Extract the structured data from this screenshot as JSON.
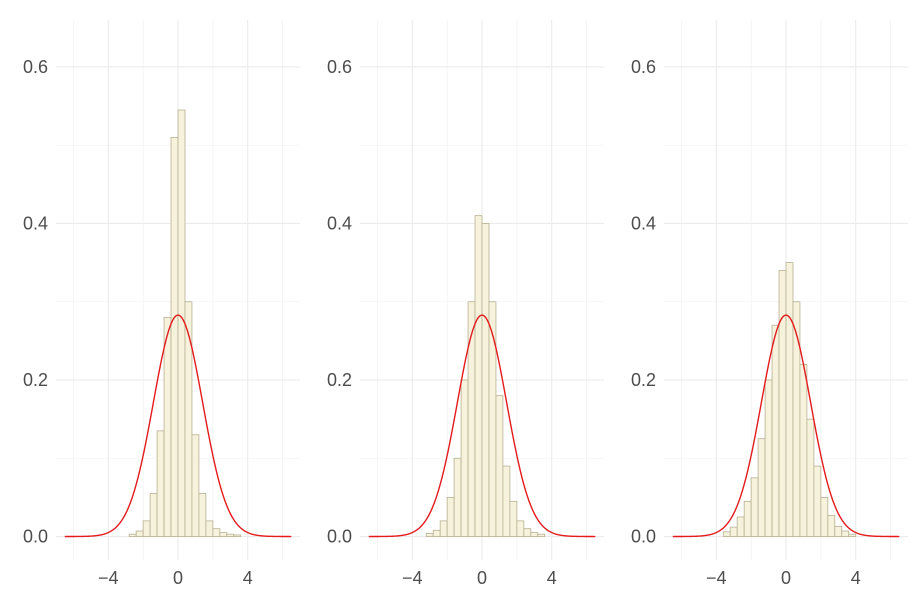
{
  "chart_data": [
    {
      "type": "bar",
      "title": "",
      "xlabel": "",
      "ylabel": "",
      "xlim": [
        -7,
        7
      ],
      "ylim": [
        -0.03,
        0.66
      ],
      "x_ticks": [
        -4,
        0,
        4
      ],
      "x_tick_labels": [
        "−4",
        "0",
        "4"
      ],
      "y_ticks": [
        0.0,
        0.2,
        0.4,
        0.6
      ],
      "y_tick_labels": [
        "0.0",
        "0.2",
        "0.4",
        "0.6"
      ],
      "grid": true,
      "bin_width": 0.4,
      "bins_start": [
        -2.8,
        -2.4,
        -2.0,
        -1.6,
        -1.2,
        -0.8,
        -0.4,
        0.0,
        0.4,
        0.8,
        1.2,
        1.6,
        2.0,
        2.4,
        2.8,
        3.2
      ],
      "density": [
        0.003,
        0.007,
        0.02,
        0.055,
        0.135,
        0.28,
        0.51,
        0.545,
        0.3,
        0.13,
        0.055,
        0.02,
        0.01,
        0.005,
        0.003,
        0.002
      ],
      "overlay": {
        "type": "line",
        "curve": "normal_density",
        "mean": 0,
        "sd": 1.41,
        "color": "#e41a1c"
      },
      "bar_fill": "#f6f2dc",
      "bar_stroke": "#b7b193"
    },
    {
      "type": "bar",
      "title": "",
      "xlabel": "",
      "ylabel": "",
      "xlim": [
        -7,
        7
      ],
      "ylim": [
        -0.03,
        0.66
      ],
      "x_ticks": [
        -4,
        0,
        4
      ],
      "x_tick_labels": [
        "−4",
        "0",
        "4"
      ],
      "y_ticks": [
        0.0,
        0.2,
        0.4,
        0.6
      ],
      "y_tick_labels": [
        "0.0",
        "0.2",
        "0.4",
        "0.6"
      ],
      "grid": true,
      "bin_width": 0.4,
      "bins_start": [
        -3.2,
        -2.8,
        -2.4,
        -2.0,
        -1.6,
        -1.2,
        -0.8,
        -0.4,
        0.0,
        0.4,
        0.8,
        1.2,
        1.6,
        2.0,
        2.4,
        2.8,
        3.2
      ],
      "density": [
        0.004,
        0.008,
        0.02,
        0.05,
        0.1,
        0.2,
        0.3,
        0.41,
        0.4,
        0.3,
        0.18,
        0.09,
        0.045,
        0.02,
        0.01,
        0.005,
        0.003
      ],
      "overlay": {
        "type": "line",
        "curve": "normal_density",
        "mean": 0,
        "sd": 1.41,
        "color": "#e41a1c"
      },
      "bar_fill": "#f6f2dc",
      "bar_stroke": "#b7b193"
    },
    {
      "type": "bar",
      "title": "",
      "xlabel": "",
      "ylabel": "",
      "xlim": [
        -7,
        7
      ],
      "ylim": [
        -0.03,
        0.66
      ],
      "x_ticks": [
        -4,
        0,
        4
      ],
      "x_tick_labels": [
        "−4",
        "0",
        "4"
      ],
      "y_ticks": [
        0.0,
        0.2,
        0.4,
        0.6
      ],
      "y_tick_labels": [
        "0.0",
        "0.2",
        "0.4",
        "0.6"
      ],
      "grid": true,
      "bin_width": 0.4,
      "bins_start": [
        -3.6,
        -3.2,
        -2.8,
        -2.4,
        -2.0,
        -1.6,
        -1.2,
        -0.8,
        -0.4,
        0.0,
        0.4,
        0.8,
        1.2,
        1.6,
        2.0,
        2.4,
        2.8,
        3.2,
        3.6
      ],
      "density": [
        0.006,
        0.012,
        0.025,
        0.045,
        0.075,
        0.125,
        0.2,
        0.27,
        0.34,
        0.35,
        0.3,
        0.22,
        0.15,
        0.09,
        0.05,
        0.027,
        0.013,
        0.007,
        0.003
      ],
      "overlay": {
        "type": "line",
        "curve": "normal_density",
        "mean": 0,
        "sd": 1.41,
        "color": "#e41a1c"
      },
      "bar_fill": "#f6f2dc",
      "bar_stroke": "#b7b193"
    }
  ]
}
